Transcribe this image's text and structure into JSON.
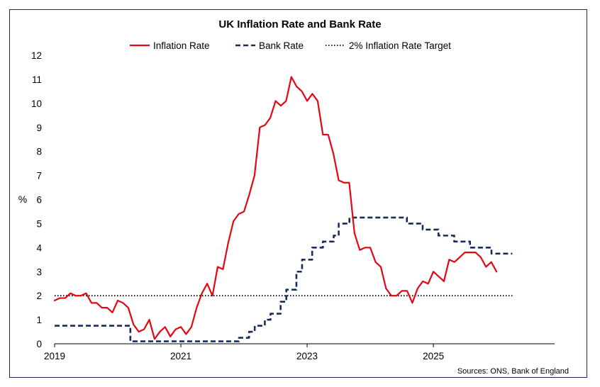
{
  "chart_data": {
    "type": "line",
    "title": "UK Inflation Rate and Bank Rate",
    "ylabel": "%",
    "xlabel": "",
    "ylim": [
      0,
      12
    ],
    "yticks": [
      0,
      1,
      2,
      3,
      4,
      5,
      6,
      7,
      8,
      9,
      10,
      11,
      12
    ],
    "xlim": [
      2019.0,
      2026.92
    ],
    "xticks": [
      {
        "value": 2019,
        "label": "2019"
      },
      {
        "value": 2021,
        "label": "2021"
      },
      {
        "value": 2023,
        "label": "2023"
      },
      {
        "value": 2025,
        "label": "2025"
      }
    ],
    "grid": false,
    "legend_position": "top",
    "source": "Sources: ONS, Bank of England",
    "series": [
      {
        "name": "Inflation Rate",
        "color": "#e30613",
        "style": "solid",
        "x_start": 2019.0,
        "x_step": 0.0833333,
        "values": [
          1.8,
          1.9,
          1.9,
          2.1,
          2.0,
          2.0,
          2.1,
          1.7,
          1.7,
          1.5,
          1.5,
          1.3,
          1.8,
          1.7,
          1.5,
          0.8,
          0.5,
          0.6,
          1.0,
          0.2,
          0.5,
          0.7,
          0.3,
          0.6,
          0.7,
          0.4,
          0.7,
          1.5,
          2.1,
          2.5,
          2.0,
          3.2,
          3.1,
          4.2,
          5.1,
          5.4,
          5.5,
          6.2,
          7.0,
          9.0,
          9.1,
          9.4,
          10.1,
          9.9,
          10.1,
          11.1,
          10.7,
          10.5,
          10.1,
          10.4,
          10.1,
          8.7,
          8.7,
          7.9,
          6.8,
          6.7,
          6.7,
          4.6,
          3.9,
          4.0,
          4.0,
          3.4,
          3.2,
          2.3,
          2.0,
          2.0,
          2.2,
          2.2,
          1.7,
          2.3,
          2.6,
          2.5,
          3.0,
          2.8,
          2.6,
          3.5,
          3.4,
          3.6,
          3.8,
          3.8,
          3.8,
          3.6,
          3.2,
          3.4,
          3.0
        ]
      },
      {
        "name": "Bank Rate",
        "color": "#1a2b5e",
        "style": "dashed",
        "points": [
          [
            2019.0,
            0.75
          ],
          [
            2020.2,
            0.75
          ],
          [
            2020.2,
            0.1
          ],
          [
            2021.92,
            0.1
          ],
          [
            2021.92,
            0.25
          ],
          [
            2022.08,
            0.25
          ],
          [
            2022.08,
            0.5
          ],
          [
            2022.17,
            0.5
          ],
          [
            2022.17,
            0.75
          ],
          [
            2022.33,
            0.75
          ],
          [
            2022.33,
            1.0
          ],
          [
            2022.42,
            1.0
          ],
          [
            2022.42,
            1.25
          ],
          [
            2022.58,
            1.25
          ],
          [
            2022.58,
            1.75
          ],
          [
            2022.67,
            1.75
          ],
          [
            2022.67,
            2.25
          ],
          [
            2022.83,
            2.25
          ],
          [
            2022.83,
            3.0
          ],
          [
            2022.92,
            3.0
          ],
          [
            2022.92,
            3.5
          ],
          [
            2023.08,
            3.5
          ],
          [
            2023.08,
            4.0
          ],
          [
            2023.25,
            4.0
          ],
          [
            2023.25,
            4.25
          ],
          [
            2023.42,
            4.25
          ],
          [
            2023.42,
            4.5
          ],
          [
            2023.5,
            4.5
          ],
          [
            2023.5,
            5.0
          ],
          [
            2023.67,
            5.0
          ],
          [
            2023.67,
            5.25
          ],
          [
            2024.58,
            5.25
          ],
          [
            2024.58,
            5.0
          ],
          [
            2024.83,
            5.0
          ],
          [
            2024.83,
            4.75
          ],
          [
            2025.08,
            4.75
          ],
          [
            2025.08,
            4.5
          ],
          [
            2025.33,
            4.5
          ],
          [
            2025.33,
            4.25
          ],
          [
            2025.58,
            4.25
          ],
          [
            2025.58,
            4.0
          ],
          [
            2025.92,
            4.0
          ],
          [
            2025.92,
            3.75
          ],
          [
            2026.25,
            3.75
          ]
        ]
      },
      {
        "name": "2% Inflation Rate Target",
        "color": "#000000",
        "style": "dotted",
        "points": [
          [
            2019.0,
            2.0
          ],
          [
            2026.25,
            2.0
          ]
        ]
      }
    ]
  }
}
